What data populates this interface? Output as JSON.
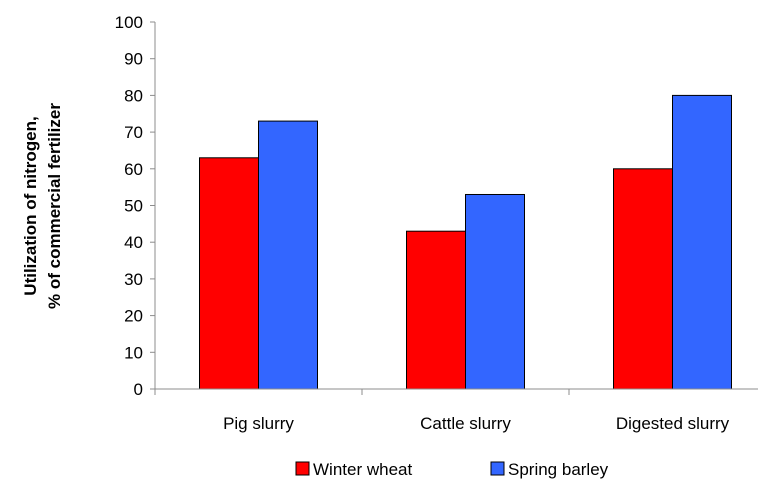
{
  "chart_data": {
    "type": "bar",
    "categories": [
      "Pig slurry",
      "Cattle slurry",
      "Digested slurry"
    ],
    "series": [
      {
        "name": "Winter wheat",
        "values": [
          63,
          43,
          60
        ],
        "color": "#ff0000"
      },
      {
        "name": "Spring barley",
        "values": [
          73,
          53,
          80
        ],
        "color": "#3366ff"
      }
    ],
    "title": "",
    "xlabel": "",
    "ylabel": "Utilization of nitrogen,\n% of commercial fertilizer",
    "ylabel_lines": [
      "Utilization of nitrogen,",
      "% of commercial fertilizer"
    ],
    "ylim": [
      0,
      100
    ],
    "yticks": [
      0,
      10,
      20,
      30,
      40,
      50,
      60,
      70,
      80,
      90,
      100
    ],
    "grid": false,
    "legend": "bottom"
  }
}
